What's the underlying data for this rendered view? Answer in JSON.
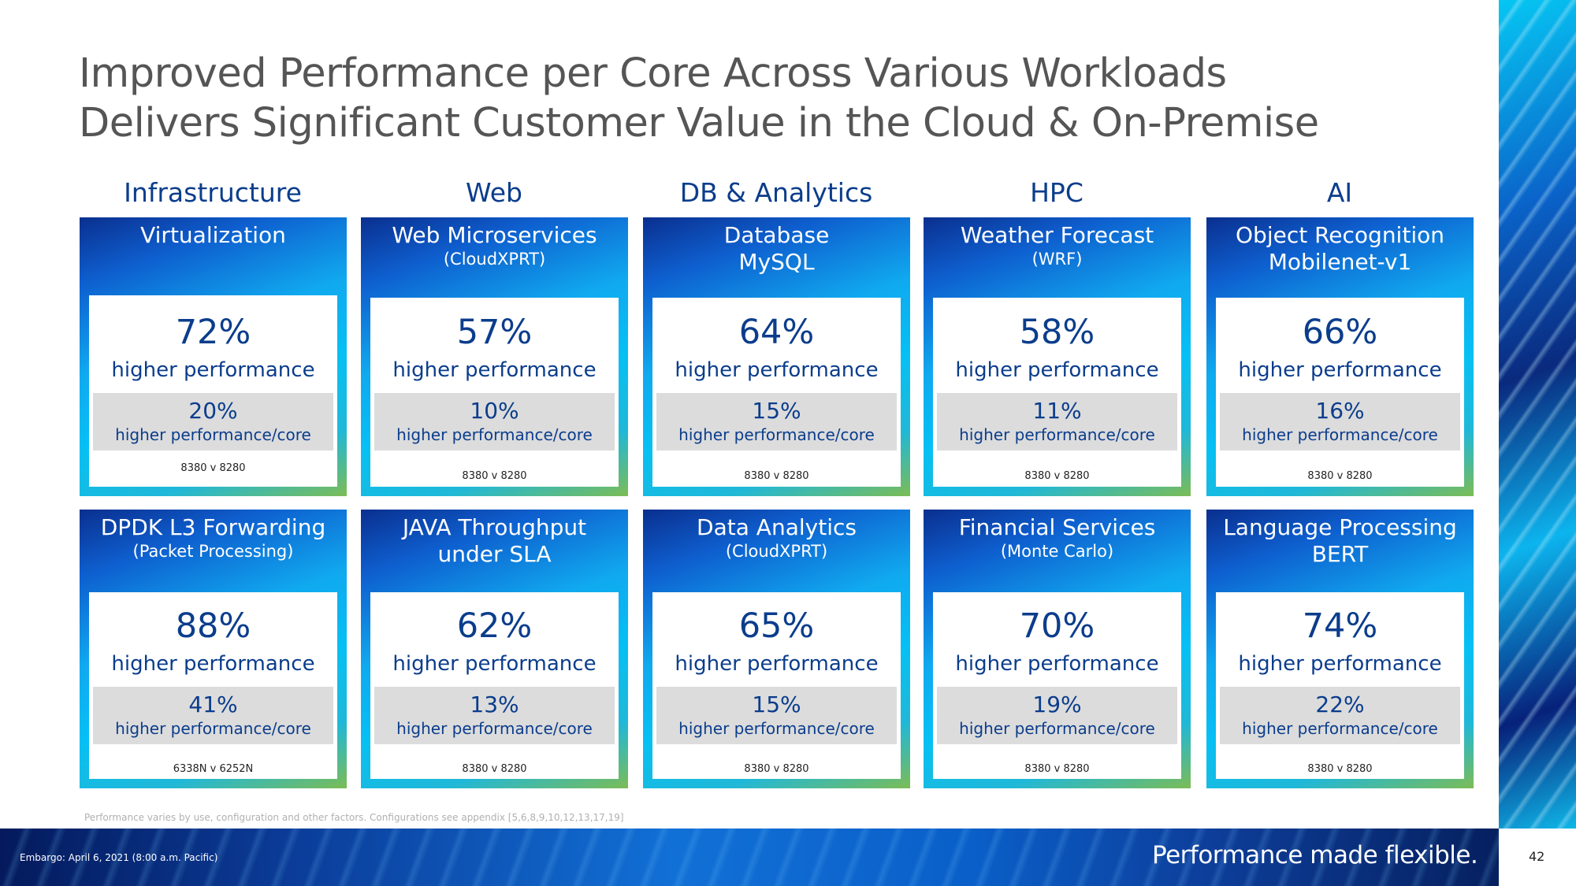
{
  "title": {
    "line1": "Improved Performance per Core Across Various Workloads",
    "line2": "Delivers Significant Customer Value in the Cloud & On-Premise"
  },
  "categories": [
    "Infrastructure",
    "Web",
    "DB & Analytics",
    "HPC",
    "AI"
  ],
  "cards": [
    {
      "title": "Virtualization",
      "subtitle": "",
      "big": "72%",
      "big_label": "higher performance",
      "core": "20%",
      "core_label": "higher performance/core",
      "cmp": "8380 v 8280"
    },
    {
      "title": "Web Microservices",
      "subtitle": "(CloudXPRT)",
      "big": "57%",
      "big_label": "higher performance",
      "core": "10%",
      "core_label": "higher performance/core",
      "cmp": "8380 v 8280"
    },
    {
      "title": "Database",
      "title2": "MySQL",
      "subtitle": "",
      "big": "64%",
      "big_label": "higher performance",
      "core": "15%",
      "core_label": "higher performance/core",
      "cmp": "8380 v 8280"
    },
    {
      "title": "Weather Forecast",
      "subtitle": "(WRF)",
      "big": "58%",
      "big_label": "higher performance",
      "core": "11%",
      "core_label": "higher performance/core",
      "cmp": "8380 v 8280"
    },
    {
      "title": "Object Recognition",
      "title2": "Mobilenet-v1",
      "subtitle": "",
      "big": "66%",
      "big_label": "higher performance",
      "core": "16%",
      "core_label": "higher performance/core",
      "cmp": "8380 v 8280"
    },
    {
      "title": "DPDK L3 Forwarding",
      "subtitle": "(Packet Processing)",
      "big": "88%",
      "big_label": "higher performance",
      "core": "41%",
      "core_label": "higher performance/core",
      "cmp": "6338N v 6252N"
    },
    {
      "title": "JAVA Throughput",
      "title2": "under SLA",
      "subtitle": "",
      "big": "62%",
      "big_label": "higher performance",
      "core": "13%",
      "core_label": "higher performance/core",
      "cmp": "8380 v 8280"
    },
    {
      "title": "Data Analytics",
      "subtitle": "(CloudXPRT)",
      "big": "65%",
      "big_label": "higher performance",
      "core": "15%",
      "core_label": "higher performance/core",
      "cmp": "8380 v 8280"
    },
    {
      "title": "Financial Services",
      "subtitle": "(Monte Carlo)",
      "big": "70%",
      "big_label": "higher performance",
      "core": "19%",
      "core_label": "higher performance/core",
      "cmp": "8380 v 8280"
    },
    {
      "title": "Language Processing",
      "title2": "BERT",
      "subtitle": "",
      "big": "74%",
      "big_label": "higher performance",
      "core": "22%",
      "core_label": "higher performance/core",
      "cmp": "8380 v 8280"
    }
  ],
  "footnote": "Performance varies by use, configuration and other factors. Configurations see appendix [5,6,8,9,10,12,13,17,19]",
  "footer": {
    "embargo": "Embargo: April 6, 2021 (8:00 a.m. Pacific)",
    "tagline": "Performance made flexible.",
    "page_number": "42"
  }
}
